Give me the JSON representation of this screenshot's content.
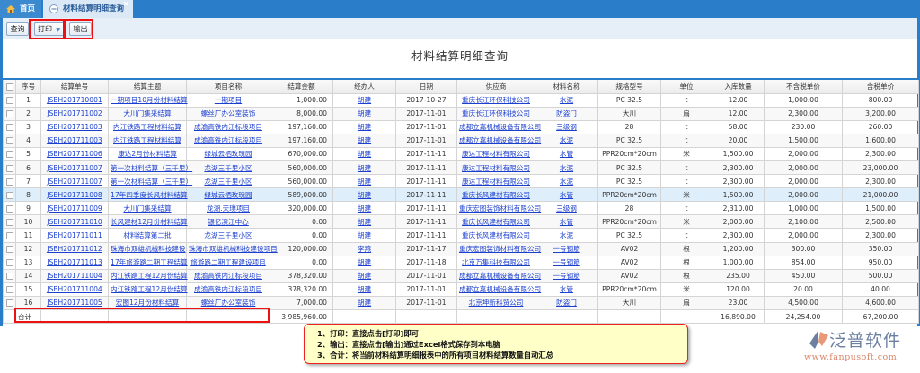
{
  "tabs": [
    {
      "label": "首页",
      "icon": "home-icon"
    },
    {
      "label": "材料结算明细查询",
      "icon": "page-icon",
      "close": "×"
    }
  ],
  "toolbar": {
    "query": "查询",
    "print": "打印",
    "export": "输出"
  },
  "page_title": "材料结算明细查询",
  "columns": [
    "",
    "序号",
    "结算单号",
    "结算主题",
    "项目名称",
    "结算金额",
    "经办人",
    "日期",
    "供应商",
    "材料名称",
    "规格型号",
    "单位",
    "入库数量",
    "不含税单价",
    "含税单价"
  ],
  "rows": [
    [
      "1",
      "JSBH201710001",
      "一期项目10月份材料结算",
      "一期项目",
      "1,000.00",
      "胡建",
      "2017-10-27",
      "重庆长江环保科技公司",
      "水泥",
      "PC 32.5",
      "t",
      "12.00",
      "1,000.00",
      "800.00"
    ],
    [
      "2",
      "JSBH201711002",
      "大川门集采结算",
      "螺丝厂办公室装饰",
      "8,000.00",
      "胡建",
      "2017-11-01",
      "重庆长江环保科技公司",
      "防盗门",
      "大川",
      "扇",
      "12.00",
      "2,300.00",
      "3,200.00"
    ],
    [
      "3",
      "JSBH201711003",
      "内江铁路工程材料结算",
      "成渝高铁内江标段项目",
      "197,160.00",
      "胡建",
      "2017-11-01",
      "成都立嘉机械设备有限公司",
      "三级钢",
      "28",
      "t",
      "58.00",
      "230.00",
      "260.00"
    ],
    [
      "4",
      "JSBH201711003",
      "内江铁路工程材料结算",
      "成渝高铁内江标段项目",
      "197,160.00",
      "胡建",
      "2017-11-01",
      "成都立嘉机械设备有限公司",
      "水泥",
      "PC 32.5",
      "t",
      "20.00",
      "1,500.00",
      "1,600.00"
    ],
    [
      "5",
      "JSBH201711006",
      "康达2月份材料结算",
      "绿城云栖玫瑰园",
      "670,000.00",
      "胡建",
      "2017-11-11",
      "康达工程材料有限公司",
      "水管",
      "PPR20cm*20cm",
      "米",
      "1,500.00",
      "2,000.00",
      "2,300.00"
    ],
    [
      "6",
      "JSBH201711007",
      "第一次材料结算（三千里）",
      "龙湖三千里小区",
      "560,000.00",
      "胡建",
      "2017-11-11",
      "康达工程材料有限公司",
      "水泥",
      "PC 32.5",
      "t",
      "2,300.00",
      "2,000.00",
      "23,000.00"
    ],
    [
      "7",
      "JSBH201711007",
      "第一次材料结算（三千里）",
      "龙湖三千里小区",
      "560,000.00",
      "胡建",
      "2017-11-11",
      "康达工程材料有限公司",
      "水泥",
      "PC 32.5",
      "t",
      "2,300.00",
      "2,000.00",
      "2,300.00"
    ],
    [
      "8",
      "JSBH201711008",
      "17年四季度长风材料结算",
      "绿城云栖玫瑰园",
      "589,000.00",
      "胡建",
      "2017-11-11",
      "重庆长风建材有限公司",
      "水管",
      "PPR20cm*20cm",
      "米",
      "1,500.00",
      "2,000.00",
      "21,000.00"
    ],
    [
      "9",
      "JSBH201711009",
      "大川门集采结算",
      "龙湖.天璞项目",
      "320,000.00",
      "胡建",
      "2017-11-11",
      "重庆宏图装饰材料有限公司",
      "三级钢",
      "28",
      "t",
      "2,310.00",
      "1,000.00",
      "1,500.00"
    ],
    [
      "10",
      "JSBH201711010",
      "长风建材12月份材料结算",
      "银亿滨江中心",
      "0.00",
      "胡建",
      "2017-11-11",
      "重庆长风建材有限公司",
      "水管",
      "PPR20cm*20cm",
      "米",
      "2,000.00",
      "2,100.00",
      "2,500.00"
    ],
    [
      "11",
      "JSBH201711011",
      "材料结算第二批",
      "龙湖三千里小区",
      "0.00",
      "胡建",
      "2017-11-11",
      "重庆长风建材有限公司",
      "水泥",
      "PC 32.5",
      "t",
      "2,300.00",
      "2,000.00",
      "2,300.00"
    ],
    [
      "12",
      "JSBH201711012",
      "珠海市双雄机械科技建设",
      "珠海市双雄机械科技建设项目",
      "120,000.00",
      "李燕",
      "2017-11-17",
      "重庆宏图装饰材料有限公司",
      "一号钢筋",
      "AV02",
      "根",
      "1,200.00",
      "300.00",
      "350.00"
    ],
    [
      "13",
      "JSBH201711013",
      "17年旅游路二期工程结算",
      "旅游路二期工程建设项目",
      "0.00",
      "胡建",
      "2017-11-18",
      "北京万集科技有限公司",
      "一号钢筋",
      "AV02",
      "根",
      "1,000.00",
      "854.00",
      "950.00"
    ],
    [
      "14",
      "JSBH201711004",
      "内江铁路工程12月份结算",
      "成渝高铁内江标段项目",
      "378,320.00",
      "胡建",
      "2017-11-01",
      "成都立嘉机械设备有限公司",
      "一号钢筋",
      "AV02",
      "根",
      "235.00",
      "450.00",
      "500.00"
    ],
    [
      "15",
      "JSBH201711004",
      "内江铁路工程12月份结算",
      "成渝高铁内江标段项目",
      "378,320.00",
      "胡建",
      "2017-11-01",
      "成都立嘉机械设备有限公司",
      "水管",
      "PPR20cm*20cm",
      "米",
      "120.00",
      "20.00",
      "40.00"
    ],
    [
      "16",
      "JSBH201711005",
      "宏图12月份材料结算",
      "螺丝厂办公室装饰",
      "7,000.00",
      "胡建",
      "2017-11-01",
      "北京坤新科贸公司",
      "防盗门",
      "大川",
      "扇",
      "23.00",
      "4,500.00",
      "4,600.00"
    ]
  ],
  "selected_row": 8,
  "totals": {
    "label": "合计",
    "amount": "3,985,960.00",
    "qty": "16,890.00",
    "price_ex": "24,254.00",
    "price_in": "67,200.00"
  },
  "notes": [
    "1、打印：直接点击[打印]即可",
    "2、输出：直接点击[输出]通过Excel格式保存到本电脑",
    "3、合计：将当前材料结算明细报表中的所有项目材料结算数量自动汇总"
  ],
  "logo": {
    "name": "泛普软件",
    "url": "www.fanpusoft.com"
  },
  "colors": {
    "accent": "#2a7dc8",
    "link": "#1b3fcf",
    "highlight": "#e11111",
    "note_bg": "#ffffc8"
  }
}
